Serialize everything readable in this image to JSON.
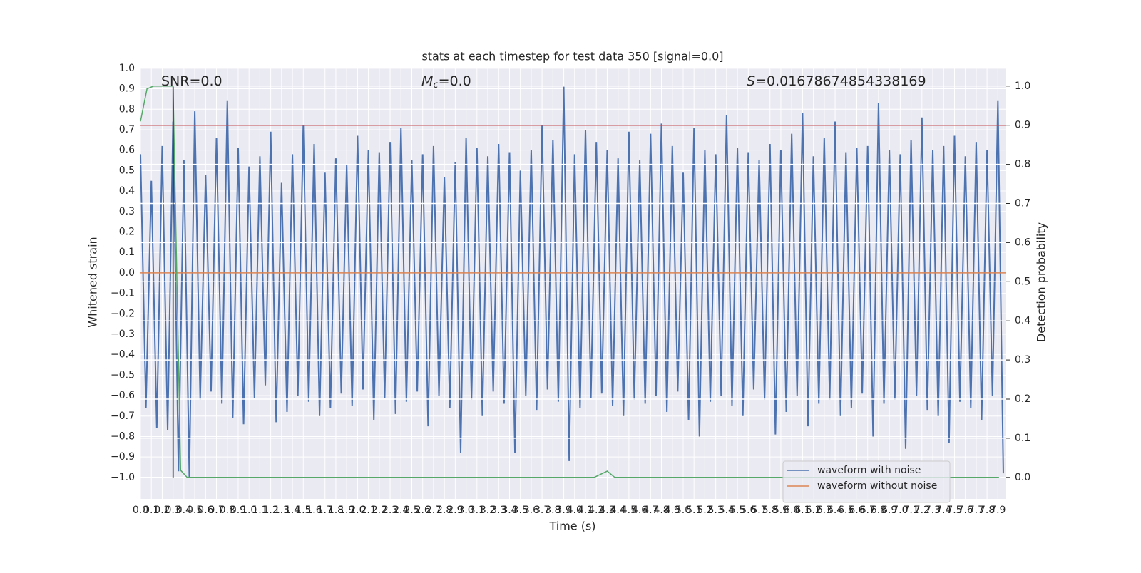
{
  "chart_data": {
    "type": "line",
    "title": "stats at each timestep for test data 350 [signal=0.0]",
    "x_label": "Time (s)",
    "y_label": "Whitened strain",
    "y2_label": "Detection probability",
    "annotations": [
      {
        "text": "SNR=0.0"
      },
      {
        "symbol": "M",
        "subscript": "c",
        "text": "=0.0"
      },
      {
        "symbol": "S",
        "text": "=0.01678674854338169"
      }
    ],
    "xlim": [
      0,
      7.97
    ],
    "ylim": [
      -1.105,
      1.003
    ],
    "y2lim": [
      -0.055,
      1.047
    ],
    "grid": true,
    "legend": "lower right",
    "xticks": [
      {
        "value": 0,
        "label": "0.0"
      },
      {
        "value": 0.1,
        "label": "0.1"
      },
      {
        "value": 0.2,
        "label": "0.2"
      },
      {
        "value": 0.3,
        "label": "0.3"
      },
      {
        "value": 0.4,
        "label": "0.4"
      },
      {
        "value": 0.5,
        "label": "0.5"
      },
      {
        "value": 0.6,
        "label": "0.6"
      },
      {
        "value": 0.7,
        "label": "0.7"
      },
      {
        "value": 0.8,
        "label": "0.8"
      },
      {
        "value": 0.9,
        "label": "0.9"
      },
      {
        "value": 1,
        "label": "1.0"
      },
      {
        "value": 1.1,
        "label": "1.1"
      },
      {
        "value": 1.2,
        "label": "1.2"
      },
      {
        "value": 1.3,
        "label": "1.3"
      },
      {
        "value": 1.4,
        "label": "1.4"
      },
      {
        "value": 1.5,
        "label": "1.5"
      },
      {
        "value": 1.6,
        "label": "1.6"
      },
      {
        "value": 1.7,
        "label": "1.7"
      },
      {
        "value": 1.8,
        "label": "1.8"
      },
      {
        "value": 1.9,
        "label": "1.9"
      },
      {
        "value": 2,
        "label": "2.0"
      },
      {
        "value": 2.1,
        "label": "2.1"
      },
      {
        "value": 2.2,
        "label": "2.2"
      },
      {
        "value": 2.3,
        "label": "2.3"
      },
      {
        "value": 2.4,
        "label": "2.4"
      },
      {
        "value": 2.5,
        "label": "2.5"
      },
      {
        "value": 2.6,
        "label": "2.6"
      },
      {
        "value": 2.7,
        "label": "2.7"
      },
      {
        "value": 2.8,
        "label": "2.8"
      },
      {
        "value": 2.9,
        "label": "2.9"
      },
      {
        "value": 3,
        "label": "3.0"
      },
      {
        "value": 3.1,
        "label": "3.1"
      },
      {
        "value": 3.2,
        "label": "3.2"
      },
      {
        "value": 3.3,
        "label": "3.3"
      },
      {
        "value": 3.4,
        "label": "3.4"
      },
      {
        "value": 3.5,
        "label": "3.5"
      },
      {
        "value": 3.6,
        "label": "3.6"
      },
      {
        "value": 3.7,
        "label": "3.7"
      },
      {
        "value": 3.8,
        "label": "3.8"
      },
      {
        "value": 3.9,
        "label": "3.9"
      },
      {
        "value": 4,
        "label": "4.0"
      },
      {
        "value": 4.1,
        "label": "4.1"
      },
      {
        "value": 4.2,
        "label": "4.2"
      },
      {
        "value": 4.3,
        "label": "4.3"
      },
      {
        "value": 4.4,
        "label": "4.4"
      },
      {
        "value": 4.5,
        "label": "4.5"
      },
      {
        "value": 4.6,
        "label": "4.6"
      },
      {
        "value": 4.7,
        "label": "4.7"
      },
      {
        "value": 4.8,
        "label": "4.8"
      },
      {
        "value": 4.9,
        "label": "4.9"
      },
      {
        "value": 5,
        "label": "5.0"
      },
      {
        "value": 5.1,
        "label": "5.1"
      },
      {
        "value": 5.2,
        "label": "5.2"
      },
      {
        "value": 5.3,
        "label": "5.3"
      },
      {
        "value": 5.4,
        "label": "5.4"
      },
      {
        "value": 5.5,
        "label": "5.5"
      },
      {
        "value": 5.6,
        "label": "5.6"
      },
      {
        "value": 5.7,
        "label": "5.7"
      },
      {
        "value": 5.8,
        "label": "5.8"
      },
      {
        "value": 5.9,
        "label": "5.9"
      },
      {
        "value": 6,
        "label": "6.0"
      },
      {
        "value": 6.1,
        "label": "6.1"
      },
      {
        "value": 6.2,
        "label": "6.2"
      },
      {
        "value": 6.3,
        "label": "6.3"
      },
      {
        "value": 6.4,
        "label": "6.4"
      },
      {
        "value": 6.5,
        "label": "6.5"
      },
      {
        "value": 6.6,
        "label": "6.6"
      },
      {
        "value": 6.7,
        "label": "6.7"
      },
      {
        "value": 6.8,
        "label": "6.8"
      },
      {
        "value": 6.9,
        "label": "6.9"
      },
      {
        "value": 7,
        "label": "7.0"
      },
      {
        "value": 7.1,
        "label": "7.1"
      },
      {
        "value": 7.2,
        "label": "7.2"
      },
      {
        "value": 7.3,
        "label": "7.3"
      },
      {
        "value": 7.4,
        "label": "7.4"
      },
      {
        "value": 7.5,
        "label": "7.5"
      },
      {
        "value": 7.6,
        "label": "7.6"
      },
      {
        "value": 7.7,
        "label": "7.7"
      },
      {
        "value": 7.8,
        "label": "7.8"
      },
      {
        "value": 7.9,
        "label": "7.9"
      }
    ],
    "yticks": [
      {
        "value": 1,
        "label": "1.0"
      },
      {
        "value": 0.9,
        "label": "0.9"
      },
      {
        "value": 0.8,
        "label": "0.8"
      },
      {
        "value": 0.7,
        "label": "0.7"
      },
      {
        "value": 0.6,
        "label": "0.6"
      },
      {
        "value": 0.5,
        "label": "0.5"
      },
      {
        "value": 0.4,
        "label": "0.4"
      },
      {
        "value": 0.3,
        "label": "0.3"
      },
      {
        "value": 0.2,
        "label": "0.2"
      },
      {
        "value": 0.1,
        "label": "0.1"
      },
      {
        "value": 0,
        "label": "0.0"
      },
      {
        "value": -0.1,
        "label": "−0.1"
      },
      {
        "value": -0.2,
        "label": "−0.2"
      },
      {
        "value": -0.3,
        "label": "−0.3"
      },
      {
        "value": -0.4,
        "label": "−0.4"
      },
      {
        "value": -0.5,
        "label": "−0.5"
      },
      {
        "value": -0.6,
        "label": "−0.6"
      },
      {
        "value": -0.7,
        "label": "−0.7"
      },
      {
        "value": -0.8,
        "label": "−0.8"
      },
      {
        "value": -0.9,
        "label": "−0.9"
      },
      {
        "value": -1,
        "label": "−1.0"
      }
    ],
    "y2ticks": [
      {
        "value": 1,
        "label": "1.0"
      },
      {
        "value": 0.9,
        "label": "0.9"
      },
      {
        "value": 0.8,
        "label": "0.8"
      },
      {
        "value": 0.7,
        "label": "0.7"
      },
      {
        "value": 0.6,
        "label": "0.6"
      },
      {
        "value": 0.5,
        "label": "0.5"
      },
      {
        "value": 0.4,
        "label": "0.4"
      },
      {
        "value": 0.3,
        "label": "0.3"
      },
      {
        "value": 0.2,
        "label": "0.2"
      },
      {
        "value": 0.1,
        "label": "0.1"
      },
      {
        "value": 0,
        "label": "0.0"
      }
    ],
    "series": [
      {
        "name": "waveform with noise",
        "color": "#4c72b0",
        "x": [
          0,
          0.05,
          0.1,
          0.15,
          0.2,
          0.25,
          0.3,
          0.35,
          0.4,
          0.45,
          0.5,
          0.55,
          0.6,
          0.65,
          0.7,
          0.75,
          0.8,
          0.85,
          0.9,
          0.95,
          1,
          1.05,
          1.1,
          1.15,
          1.2,
          1.25,
          1.3,
          1.35,
          1.4,
          1.45,
          1.5,
          1.55,
          1.6,
          1.65,
          1.7,
          1.75,
          1.8,
          1.85,
          1.9,
          1.95,
          2,
          2.05,
          2.1,
          2.15,
          2.2,
          2.25,
          2.3,
          2.35,
          2.4,
          2.45,
          2.5,
          2.55,
          2.6,
          2.65,
          2.7,
          2.75,
          2.8,
          2.85,
          2.9,
          2.95,
          3,
          3.05,
          3.1,
          3.15,
          3.2,
          3.25,
          3.3,
          3.35,
          3.4,
          3.45,
          3.5,
          3.55,
          3.6,
          3.65,
          3.7,
          3.75,
          3.8,
          3.85,
          3.9,
          3.95,
          4,
          4.05,
          4.1,
          4.15,
          4.2,
          4.25,
          4.3,
          4.35,
          4.4,
          4.45,
          4.5,
          4.55,
          4.6,
          4.65,
          4.7,
          4.75,
          4.8,
          4.85,
          4.9,
          4.95,
          5,
          5.05,
          5.1,
          5.15,
          5.2,
          5.25,
          5.3,
          5.35,
          5.4,
          5.45,
          5.5,
          5.55,
          5.6,
          5.65,
          5.7,
          5.75,
          5.8,
          5.85,
          5.9,
          5.95,
          6,
          6.05,
          6.1,
          6.15,
          6.2,
          6.25,
          6.3,
          6.35,
          6.4,
          6.45,
          6.5,
          6.55,
          6.6,
          6.65,
          6.7,
          6.75,
          6.8,
          6.85,
          6.9,
          6.95,
          7,
          7.05,
          7.1,
          7.15,
          7.2,
          7.25,
          7.3,
          7.35,
          7.4,
          7.45,
          7.5,
          7.55,
          7.6,
          7.65,
          7.7,
          7.75,
          7.8,
          7.85,
          7.9,
          7.95
        ],
        "values": [
          0.58,
          -0.66,
          0.45,
          -0.76,
          0.62,
          -0.77,
          0.74,
          -0.97,
          0.55,
          -1.0,
          0.79,
          -0.62,
          0.48,
          -0.58,
          0.66,
          -0.64,
          0.84,
          -0.71,
          0.61,
          -0.74,
          0.52,
          -0.61,
          0.57,
          -0.55,
          0.69,
          -0.73,
          0.44,
          -0.68,
          0.58,
          -0.6,
          0.72,
          -0.63,
          0.63,
          -0.7,
          0.49,
          -0.66,
          0.56,
          -0.59,
          0.53,
          -0.65,
          0.67,
          -0.57,
          0.6,
          -0.72,
          0.59,
          -0.61,
          0.64,
          -0.69,
          0.71,
          -0.63,
          0.55,
          -0.58,
          0.58,
          -0.75,
          0.62,
          -0.6,
          0.47,
          -0.66,
          0.54,
          -0.88,
          0.66,
          -0.62,
          0.61,
          -0.7,
          0.57,
          -0.58,
          0.63,
          -0.64,
          0.59,
          -0.88,
          0.5,
          -0.6,
          0.6,
          -0.67,
          0.72,
          -0.57,
          0.65,
          -0.63,
          0.91,
          -0.92,
          0.58,
          -0.66,
          0.7,
          -0.61,
          0.64,
          -0.59,
          0.6,
          -0.65,
          0.56,
          -0.7,
          0.69,
          -0.62,
          0.55,
          -0.64,
          0.68,
          -0.6,
          0.73,
          -0.68,
          0.62,
          -0.58,
          0.49,
          -0.72,
          0.71,
          -0.8,
          0.6,
          -0.63,
          0.58,
          -0.6,
          0.77,
          -0.65,
          0.61,
          -0.7,
          0.59,
          -0.57,
          0.55,
          -0.62,
          0.63,
          -0.79,
          0.6,
          -0.68,
          0.68,
          -0.6,
          0.78,
          -0.75,
          0.57,
          -0.64,
          0.66,
          -0.62,
          0.74,
          -0.7,
          0.59,
          -0.66,
          0.61,
          -0.59,
          0.62,
          -0.8,
          0.83,
          -0.64,
          0.6,
          -0.62,
          0.58,
          -0.86,
          0.65,
          -0.6,
          0.76,
          -0.67,
          0.6,
          -0.7,
          0.62,
          -0.83,
          0.67,
          -0.63,
          0.57,
          -0.66,
          0.64,
          -0.72,
          0.6,
          -0.6,
          0.84,
          -0.98
        ]
      },
      {
        "name": "waveform without noise",
        "color": "#dd8452",
        "x": [
          0,
          7.97
        ],
        "values": [
          0,
          0
        ]
      },
      {
        "axis": "y2",
        "color": "#55a868",
        "x": [
          0,
          0.06,
          0.12,
          0.3,
          0.37,
          0.43,
          4.18,
          4.3,
          4.37,
          7.91
        ],
        "values": [
          0.91,
          0.993,
          1.0,
          1.0,
          0.018,
          0,
          0,
          0.016,
          0,
          0
        ]
      }
    ],
    "hlines": [
      {
        "axis": "y2",
        "value": 0.9,
        "color": "#c44e52"
      }
    ],
    "vlines": [
      {
        "x": 0.3,
        "ymin": -1.0,
        "ymax": 0.91,
        "color": "#000000"
      }
    ]
  }
}
